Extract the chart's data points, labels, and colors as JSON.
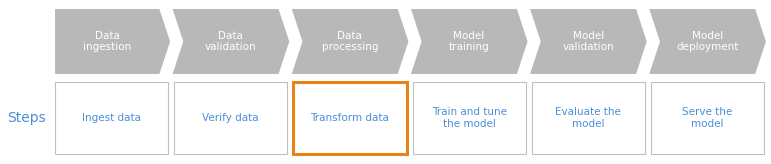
{
  "arrow_labels": [
    "Data\ningestion",
    "Data\nvalidation",
    "Data\nprocessing",
    "Model\ntraining",
    "Model\nvalidation",
    "Model\ndeployment"
  ],
  "box_labels": [
    "Ingest data",
    "Verify data",
    "Transform data",
    "Train and tune\nthe model",
    "Evaluate the\nmodel",
    "Serve the\nmodel"
  ],
  "arrow_color": "#b8b8b8",
  "arrow_text_color": "#ffffff",
  "box_text_color": "#4a90d9",
  "box_border_color": "#c0c0c0",
  "highlight_border_color": "#e8821a",
  "highlight_index": 2,
  "steps_label": "Steps",
  "steps_label_color": "#4a90d9",
  "background_color": "#ffffff",
  "n_arrows": 6,
  "fig_width": 7.71,
  "fig_height": 1.64,
  "dpi": 100
}
